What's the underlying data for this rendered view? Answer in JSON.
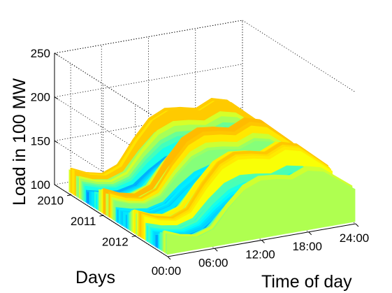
{
  "chart_data": {
    "type": "area",
    "title": "",
    "xlabel": "Time of day",
    "ylabel": "Days",
    "zlabel": "Load in 100 MW",
    "x_ticks": [
      "00:00",
      "06:00",
      "12:00",
      "18:00",
      "24:00"
    ],
    "y_ticks": [
      "2010",
      "2011",
      "2012"
    ],
    "z_ticks": [
      "100",
      "150",
      "200",
      "250"
    ],
    "xlim": [
      0,
      24
    ],
    "ylim": [
      2009.5,
      2013
    ],
    "zlim": [
      100,
      250
    ],
    "grid": true,
    "colormap": "jet",
    "load_profile": {
      "hours": [
        0,
        2,
        4,
        6,
        8,
        10,
        12,
        14,
        16,
        18,
        20,
        22,
        24
      ],
      "typical": [
        130,
        122,
        118,
        125,
        150,
        170,
        178,
        176,
        172,
        180,
        175,
        160,
        145
      ]
    },
    "colors": {
      "low": "#0050ff",
      "mid": "#00e0ff",
      "midhigh": "#ffee00",
      "high": "#ff2200"
    }
  }
}
